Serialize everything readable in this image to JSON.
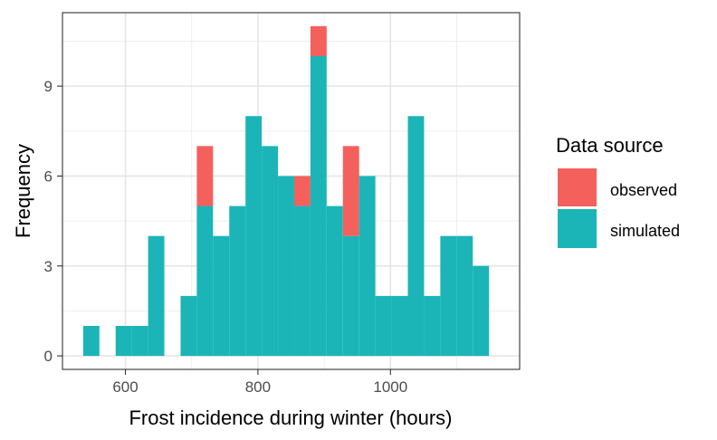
{
  "chart_data": {
    "type": "bar",
    "subtype": "stacked-histogram",
    "title": "",
    "xlabel": "Frost incidence during winter (hours)",
    "ylabel": "Frequency",
    "xlim": [
      505,
      1195
    ],
    "ylim": [
      -0.45,
      11.45
    ],
    "x_ticks": [
      600,
      800,
      1000
    ],
    "y_ticks": [
      0,
      3,
      6,
      9
    ],
    "grid": true,
    "bin_width": 24.5,
    "bin_centers": [
      548.5,
      573,
      597.5,
      622,
      646.5,
      671,
      695.5,
      720,
      744.5,
      769,
      793.5,
      818,
      842.5,
      867,
      891.5,
      916,
      940.5,
      965,
      989.5,
      1014,
      1038.5,
      1063,
      1087.5,
      1112,
      1136.5,
      1161
    ],
    "series": [
      {
        "name": "simulated",
        "color": "#1bb5b8",
        "values": [
          1,
          0,
          1,
          1,
          4,
          0,
          2,
          5,
          4,
          5,
          8,
          7,
          6,
          5,
          10,
          5,
          4,
          6,
          2,
          2,
          8,
          2,
          4,
          4,
          3,
          0
        ]
      },
      {
        "name": "observed",
        "color": "#f4605c",
        "values": [
          0,
          0,
          0,
          0,
          0,
          0,
          0,
          2,
          0,
          0,
          0,
          0,
          0,
          1,
          1,
          0,
          3,
          0,
          0,
          0,
          0,
          0,
          0,
          0,
          0,
          0
        ]
      }
    ],
    "legend": {
      "title": "Data source",
      "position": "right",
      "entries": [
        {
          "label": "observed",
          "color": "#f4605c"
        },
        {
          "label": "simulated",
          "color": "#1bb5b8"
        }
      ]
    }
  }
}
